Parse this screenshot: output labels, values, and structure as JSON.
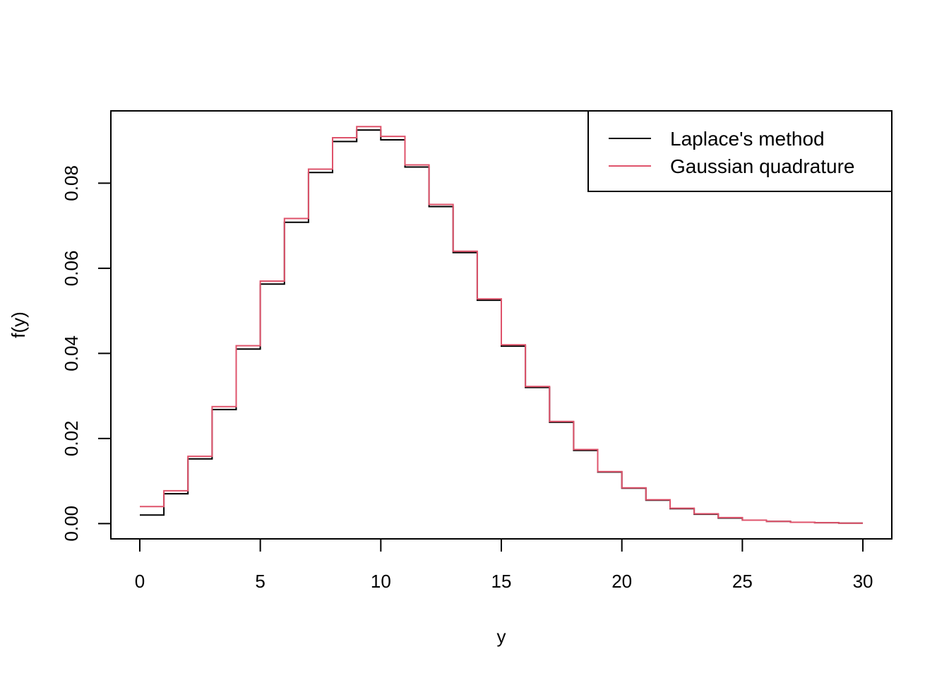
{
  "chart_data": {
    "type": "line",
    "step": "post",
    "xlabel": "y",
    "ylabel": "f(y)",
    "xlim": [
      -1.2,
      31.2
    ],
    "ylim": [
      -0.0036,
      0.097
    ],
    "x_ticks": [
      0,
      5,
      10,
      15,
      20,
      25,
      30
    ],
    "y_ticks": [
      0.0,
      0.02,
      0.04,
      0.06,
      0.08
    ],
    "y_tick_labels": [
      "0.00",
      "0.02",
      "0.04",
      "0.06",
      "0.08"
    ],
    "legend": {
      "position": "top-right",
      "entries": [
        "Laplace's method",
        "Gaussian quadrature"
      ]
    },
    "x": [
      0,
      1,
      2,
      3,
      4,
      5,
      6,
      7,
      8,
      9,
      10,
      11,
      12,
      13,
      14,
      15,
      16,
      17,
      18,
      19,
      20,
      21,
      22,
      23,
      24,
      25,
      26,
      27,
      28,
      29,
      30
    ],
    "series": [
      {
        "name": "Laplace's method",
        "color": "#000000",
        "values": [
          0.002,
          0.007,
          0.0152,
          0.0268,
          0.041,
          0.0563,
          0.0708,
          0.0825,
          0.0898,
          0.0925,
          0.0902,
          0.0838,
          0.0745,
          0.0637,
          0.0525,
          0.0417,
          0.032,
          0.0238,
          0.0172,
          0.0121,
          0.0083,
          0.0055,
          0.0035,
          0.0022,
          0.0013,
          0.0008,
          0.0005,
          0.0003,
          0.0002,
          0.0001,
          0.0001
        ]
      },
      {
        "name": "Gaussian quadrature",
        "color": "#DF536B",
        "values": [
          0.004,
          0.0077,
          0.0158,
          0.0275,
          0.0418,
          0.057,
          0.0717,
          0.0833,
          0.0907,
          0.0933,
          0.091,
          0.0843,
          0.075,
          0.064,
          0.0528,
          0.042,
          0.0322,
          0.024,
          0.0174,
          0.0122,
          0.0084,
          0.0056,
          0.0036,
          0.0023,
          0.0014,
          0.0008,
          0.0005,
          0.0003,
          0.0002,
          0.0001,
          0.0001
        ]
      }
    ]
  }
}
